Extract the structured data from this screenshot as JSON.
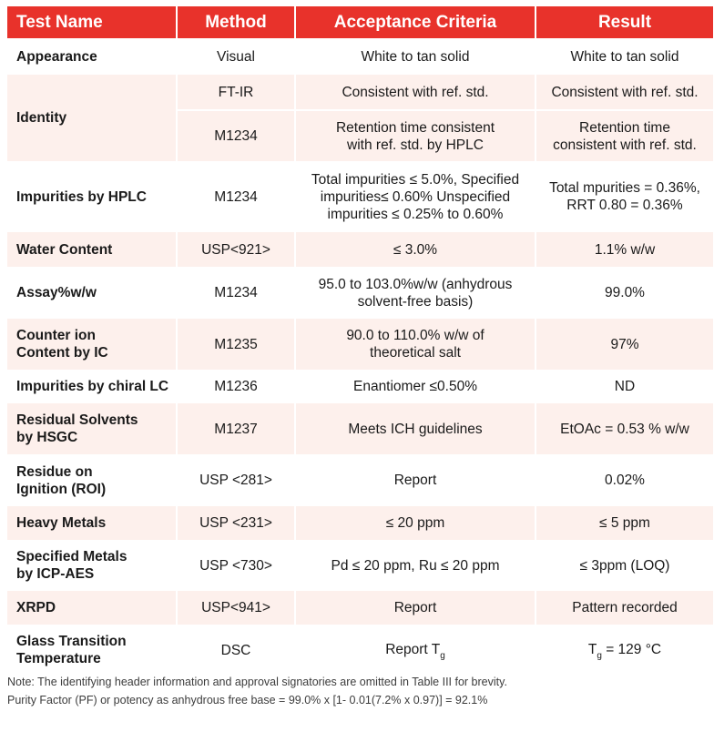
{
  "table": {
    "headers": [
      "Test Name",
      "Method",
      "Acceptance Criteria",
      "Result"
    ],
    "rows": {
      "appearance": {
        "test": "Appearance",
        "method": "Visual",
        "criteria": "White to tan solid",
        "result": "White to tan solid"
      },
      "identity": {
        "test": "Identity",
        "ftir": {
          "method": "FT-IR",
          "criteria": "Consistent with ref. std.",
          "result": "Consistent with ref. std."
        },
        "hplc": {
          "method": "M1234",
          "criteria_1": "Retention time consistent",
          "criteria_2": "with ref. std. by HPLC",
          "result_1": "Retention time",
          "result_2": "consistent with ref. std."
        }
      },
      "impurities_hplc": {
        "test": "Impurities by HPLC",
        "method": "M1234",
        "criteria_1": "Total impurities ≤ 5.0%, Specified",
        "criteria_2": "impurities≤ 0.60% Unspecified",
        "criteria_3": "impurities ≤ 0.25% to 0.60%",
        "result_1": "Total mpurities = 0.36%,",
        "result_2": "RRT 0.80 = 0.36%"
      },
      "water": {
        "test": "Water Content",
        "method": "USP<921>",
        "criteria": "≤ 3.0%",
        "result": "1.1% w/w"
      },
      "assay": {
        "test": "Assay%w/w",
        "method": "M1234",
        "criteria_1": "95.0 to 103.0%w/w (anhydrous",
        "criteria_2": "solvent-free basis)",
        "result": "99.0%"
      },
      "counter_ion": {
        "test_1": "Counter ion",
        "test_2": "Content by IC",
        "method": "M1235",
        "criteria_1": "90.0 to 110.0% w/w of",
        "criteria_2": "theoretical salt",
        "result": "97%"
      },
      "chiral": {
        "test": "Impurities by chiral LC",
        "method": "M1236",
        "criteria": "Enantiomer ≤0.50%",
        "result": "ND"
      },
      "residual_solvents": {
        "test_1": "Residual Solvents",
        "test_2": "by HSGC",
        "method": "M1237",
        "criteria": "Meets ICH guidelines",
        "result": "EtOAc = 0.53 % w/w"
      },
      "roi": {
        "test_1": "Residue on",
        "test_2": "Ignition (ROI)",
        "method": "USP <281>",
        "criteria": "Report",
        "result": "0.02%"
      },
      "heavy_metals": {
        "test": "Heavy Metals",
        "method": "USP <231>",
        "criteria": "≤ 20 ppm",
        "result": "≤ 5 ppm"
      },
      "specified_metals": {
        "test_1": "Specified Metals",
        "test_2": "by ICP-AES",
        "method": "USP <730>",
        "criteria": "Pd ≤ 20 ppm, Ru ≤ 20 ppm",
        "result": "≤ 3ppm (LOQ)"
      },
      "xrpd": {
        "test": "XRPD",
        "method": "USP<941>",
        "criteria": "Report",
        "result": "Pattern recorded"
      },
      "glass_transition": {
        "test_1": "Glass Transition",
        "test_2": "Temperature",
        "method": "DSC",
        "criteria": "Report T",
        "criteria_sub": "g",
        "result_pre": "T",
        "result_sub": "g",
        "result_post": " = 129 °C"
      }
    }
  },
  "notes": {
    "line1": "Note: The identifying header information and approval signatories are omitted in Table III for brevity.",
    "line2": "Purity Factor (PF) or potency as anhydrous free base = 99.0% x [1- 0.01(7.2% x 0.97)] = 92.1%"
  },
  "colors": {
    "header_bg": "#e8322b",
    "shade_row_bg": "#fdf0ec",
    "header_text": "#ffffff"
  }
}
